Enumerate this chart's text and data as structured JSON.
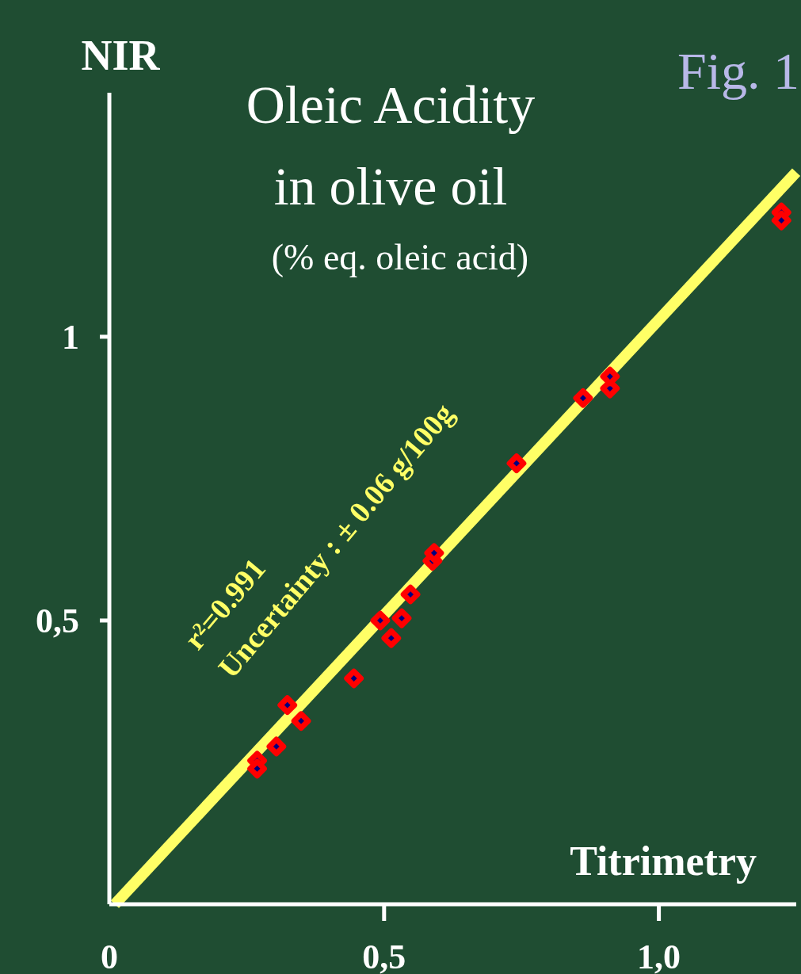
{
  "chart_data": {
    "type": "scatter",
    "title": "Oleic Acidity in olive oil",
    "subtitle": "(% eq. oleic acid)",
    "xlabel": "Titrimetry",
    "ylabel": "NIR",
    "annotations": [
      "r²=0.991",
      "Uncertainty : ± 0.06 g/100g",
      "Fig. 1"
    ],
    "xlim": [
      0,
      1.25
    ],
    "ylim": [
      0,
      1.43
    ],
    "xticks": [
      {
        "value": 0,
        "label": "0"
      },
      {
        "value": 0.5,
        "label": "0,5"
      },
      {
        "value": 1,
        "label": "1,0"
      }
    ],
    "yticks": [
      {
        "value": 0.5,
        "label": "0,5"
      },
      {
        "value": 1,
        "label": "1"
      }
    ],
    "grid": false,
    "marker": "diamond",
    "series": [
      {
        "type": "line",
        "color": "#ffff66",
        "x": [
          0.01,
          1.25
        ],
        "values": [
          0,
          1.29
        ],
        "marker": "none"
      },
      {
        "color": "#ff0000",
        "x": [
          0.269,
          0.269,
          0.304,
          0.324,
          0.349,
          0.445,
          0.493,
          0.513,
          0.532,
          0.548,
          0.588,
          0.591,
          0.741,
          0.862,
          0.911,
          0.911,
          1.223,
          1.223
        ],
        "values": [
          0.253,
          0.239,
          0.278,
          0.351,
          0.323,
          0.398,
          0.5,
          0.469,
          0.504,
          0.546,
          0.605,
          0.619,
          0.777,
          0.892,
          0.909,
          0.93,
          1.219,
          1.205
        ]
      }
    ]
  }
}
